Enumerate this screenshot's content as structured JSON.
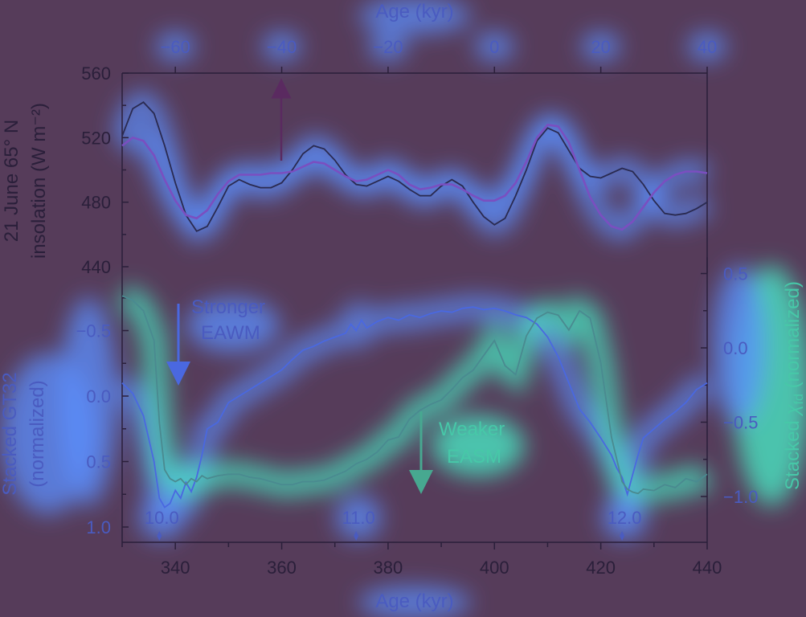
{
  "colors": {
    "background": "#563c5a",
    "glow_bright": "#47f0c8",
    "glow_blue": "#5b8fff",
    "text_blue": "#4a5bc0",
    "text_teal": "#47c8a8",
    "text_dark": "#2a1f3a",
    "axis": "#2a1f3a",
    "insolation_dark": "#2a2a50",
    "insolation_light": "#7a4fc0",
    "gt32_line": "#4a68e0",
    "chi_line": "#4a8a90",
    "annotation_up_arrow": "#5a2a60",
    "annotation_down_arrow_blue": "#4a68e0",
    "annotation_down_arrow_teal": "#47a890"
  },
  "chart_data": [
    {
      "type": "line",
      "name": "upper-panel",
      "xlabel": "Age (kyr)",
      "xticks": [
        -60,
        -40,
        -20,
        0,
        20,
        40
      ],
      "xlim": [
        -70,
        40
      ],
      "ylabel_line1": "21 June 65° N",
      "ylabel_line2": "insolation (W m⁻²)",
      "yticks": [
        440,
        480,
        520,
        560
      ],
      "ylim": [
        440,
        560
      ],
      "series": [
        {
          "role": "dark",
          "x": [
            -70,
            -68,
            -66,
            -64,
            -62,
            -60,
            -58,
            -56,
            -54,
            -52,
            -50,
            -48,
            -46,
            -44,
            -42,
            -40,
            -38,
            -36,
            -34,
            -32,
            -30,
            -28,
            -26,
            -24,
            -22,
            -20,
            -18,
            -16,
            -14,
            -12,
            -10,
            -8,
            -6,
            -4,
            -2,
            0,
            2,
            4,
            6,
            8,
            10,
            12,
            14,
            16,
            18,
            20,
            22,
            24,
            26,
            28,
            30,
            32,
            34,
            36,
            38,
            40
          ],
          "y": [
            521,
            538,
            542,
            535,
            515,
            492,
            472,
            462,
            465,
            477,
            490,
            494,
            491,
            489,
            489,
            492,
            500,
            510,
            515,
            513,
            506,
            497,
            491,
            490,
            493,
            496,
            493,
            488,
            484,
            484,
            490,
            494,
            490,
            480,
            471,
            466,
            470,
            484,
            500,
            518,
            526,
            523,
            512,
            501,
            496,
            495,
            498,
            501,
            499,
            491,
            481,
            473,
            472,
            473,
            476,
            480
          ]
        },
        {
          "role": "light",
          "x": [
            -70,
            -68,
            -66,
            -64,
            -62,
            -60,
            -58,
            -56,
            -54,
            -52,
            -50,
            -48,
            -46,
            -44,
            -42,
            -40,
            -38,
            -36,
            -34,
            -32,
            -30,
            -28,
            -26,
            -24,
            -22,
            -20,
            -18,
            -16,
            -14,
            -12,
            -10,
            -8,
            -6,
            -4,
            -2,
            0,
            2,
            4,
            6,
            8,
            10,
            12,
            14,
            16,
            18,
            20,
            22,
            24,
            26,
            28,
            30,
            32,
            34,
            36,
            38,
            40
          ],
          "y": [
            515,
            520,
            518,
            509,
            494,
            481,
            472,
            470,
            475,
            485,
            493,
            497,
            497,
            497,
            498,
            498,
            499,
            502,
            505,
            504,
            500,
            496,
            493,
            494,
            497,
            500,
            497,
            491,
            488,
            489,
            491,
            491,
            488,
            484,
            481,
            481,
            484,
            492,
            505,
            520,
            528,
            527,
            517,
            500,
            483,
            472,
            465,
            463,
            468,
            477,
            486,
            493,
            497,
            499,
            499,
            498
          ]
        }
      ],
      "annotation_arrow": "up"
    },
    {
      "type": "line",
      "name": "lower-panel",
      "xlabel": "Age (kyr)",
      "xticks": [
        340,
        360,
        380,
        400,
        420,
        440
      ],
      "xlim": [
        330,
        440
      ],
      "y_left_label_line1": "Stacked GT32",
      "y_left_label_line2": "(normalized)",
      "y_left_ticks": [
        "−0.5",
        "0.0",
        "0.5",
        "1.0"
      ],
      "y_left_values": [
        -0.5,
        0.0,
        0.5,
        1.0
      ],
      "y_left_lim": [
        -1.0,
        1.0
      ],
      "y_left_inverted": true,
      "y_right_label_prefix": "Stacked ",
      "y_right_label_symbol": "χ",
      "y_right_label_subscript": "fd",
      "y_right_label_suffix": " (normalized)",
      "y_right_ticks": [
        "0.5",
        "0.0",
        "−0.5",
        "−1.0"
      ],
      "y_right_values": [
        0.5,
        0.0,
        -0.5,
        -1.0
      ],
      "y_right_lim": [
        -1.2,
        0.7
      ],
      "annotation_left_line1": "Stronger",
      "annotation_left_line2": "EAWM",
      "annotation_right_line1": "Weaker",
      "annotation_right_line2": "EASM",
      "markers": [
        {
          "label": "10.0",
          "x": 337
        },
        {
          "label": "11.0",
          "x": 374
        },
        {
          "label": "12.0",
          "x": 424
        }
      ],
      "series": [
        {
          "role": "gt32",
          "axis": "left",
          "x": [
            330,
            332,
            334,
            336,
            337,
            338,
            339,
            340,
            341,
            342,
            343,
            344,
            345,
            346,
            348,
            350,
            352,
            354,
            356,
            358,
            360,
            362,
            364,
            366,
            368,
            370,
            372,
            373,
            374,
            375,
            376,
            378,
            380,
            382,
            384,
            386,
            388,
            390,
            392,
            394,
            396,
            398,
            400,
            402,
            404,
            406,
            408,
            410,
            412,
            414,
            416,
            418,
            420,
            422,
            423,
            424,
            425,
            426,
            427,
            428,
            430,
            432,
            434,
            436,
            438,
            440
          ],
          "y": [
            -0.1,
            -0.02,
            0.15,
            0.5,
            0.78,
            0.85,
            0.82,
            0.72,
            0.78,
            0.66,
            0.73,
            0.62,
            0.45,
            0.25,
            0.2,
            0.05,
            0.0,
            -0.05,
            -0.1,
            -0.15,
            -0.2,
            -0.28,
            -0.35,
            -0.38,
            -0.42,
            -0.45,
            -0.48,
            -0.55,
            -0.5,
            -0.58,
            -0.52,
            -0.57,
            -0.6,
            -0.58,
            -0.62,
            -0.6,
            -0.63,
            -0.65,
            -0.64,
            -0.67,
            -0.68,
            -0.66,
            -0.67,
            -0.65,
            -0.62,
            -0.6,
            -0.55,
            -0.45,
            -0.3,
            -0.1,
            0.1,
            0.2,
            0.32,
            0.45,
            0.55,
            0.62,
            0.75,
            0.6,
            0.45,
            0.32,
            0.25,
            0.18,
            0.12,
            0.05,
            -0.05,
            -0.1
          ]
        },
        {
          "role": "chi",
          "axis": "right",
          "x": [
            330,
            332,
            334,
            336,
            337,
            338,
            339,
            340,
            341,
            342,
            343,
            344,
            345,
            346,
            348,
            350,
            352,
            354,
            356,
            358,
            360,
            362,
            364,
            366,
            368,
            370,
            372,
            374,
            376,
            378,
            380,
            382,
            384,
            386,
            388,
            390,
            392,
            394,
            396,
            398,
            400,
            402,
            404,
            406,
            408,
            410,
            412,
            414,
            416,
            418,
            420,
            422,
            424,
            425,
            426,
            427,
            428,
            430,
            432,
            434,
            436,
            438,
            440
          ],
          "y": [
            0.35,
            0.32,
            0.25,
            0.05,
            -0.5,
            -0.82,
            -0.88,
            -0.9,
            -0.88,
            -0.92,
            -0.88,
            -0.9,
            -0.86,
            -0.88,
            -0.86,
            -0.85,
            -0.85,
            -0.87,
            -0.88,
            -0.9,
            -0.92,
            -0.92,
            -0.9,
            -0.9,
            -0.89,
            -0.86,
            -0.83,
            -0.78,
            -0.75,
            -0.7,
            -0.62,
            -0.6,
            -0.48,
            -0.42,
            -0.38,
            -0.35,
            -0.28,
            -0.2,
            -0.15,
            -0.05,
            0.05,
            -0.12,
            -0.18,
            0.08,
            0.2,
            0.24,
            0.22,
            0.12,
            0.25,
            0.2,
            -0.1,
            -0.6,
            -0.9,
            -0.95,
            -0.97,
            -0.98,
            -0.95,
            -0.96,
            -0.92,
            -0.94,
            -0.88,
            -0.9,
            -0.85
          ]
        }
      ]
    }
  ]
}
